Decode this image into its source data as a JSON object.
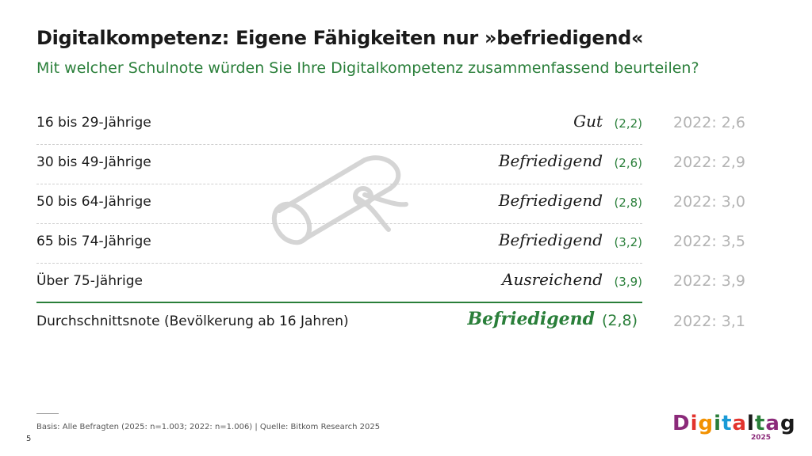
{
  "title": "Digitalkompetenz: Eigene Fähigkeiten nur »befriedigend«",
  "subtitle": "Mit welcher Schulnote würden Sie Ihre Digitalkompetenz zusammenfassend beurteilen?",
  "chart_data": {
    "type": "table",
    "rows": [
      {
        "label": "16 bis 29-Jährige",
        "grade": "Gut",
        "value": "(2,2)",
        "prev": "2022: 2,6"
      },
      {
        "label": "30 bis 49-Jährige",
        "grade": "Befriedigend",
        "value": "(2,6)",
        "prev": "2022: 2,9"
      },
      {
        "label": "50 bis 64-Jährige",
        "grade": "Befriedigend",
        "value": "(2,8)",
        "prev": "2022: 3,0"
      },
      {
        "label": "65 bis 74-Jährige",
        "grade": "Befriedigend",
        "value": "(3,2)",
        "prev": "2022: 3,5"
      },
      {
        "label": "Über 75-Jährige",
        "grade": "Ausreichend",
        "value": "(3,9)",
        "prev": "2022: 3,9"
      }
    ],
    "average": {
      "label": "Durchschnittsnote (Bevölkerung ab 16 Jahren)",
      "grade": "Befriedigend",
      "value": "(2,8)",
      "prev": "2022: 3,1"
    }
  },
  "footnote": "Basis: Alle Befragten (2025: n=1.003; 2022: n=1.006) | Quelle: Bitkom Research 2025",
  "page_number": "5",
  "logo": {
    "letters": [
      "D",
      "i",
      "g",
      "i",
      "t",
      "a",
      "l",
      "t",
      "a",
      "g"
    ],
    "colors": [
      "#8b2a7a",
      "#e2332d",
      "#f29100",
      "#2a7f3a",
      "#1a9ad6",
      "#e2332d",
      "#1a1a1a",
      "#2a7f3a",
      "#8b2a7a",
      "#1a1a1a"
    ],
    "year": "2025"
  },
  "colors": {
    "accent": "#2a7f3a",
    "muted": "#b3b3b3"
  },
  "icons": {
    "decoration": "certificate-scroll-icon"
  }
}
